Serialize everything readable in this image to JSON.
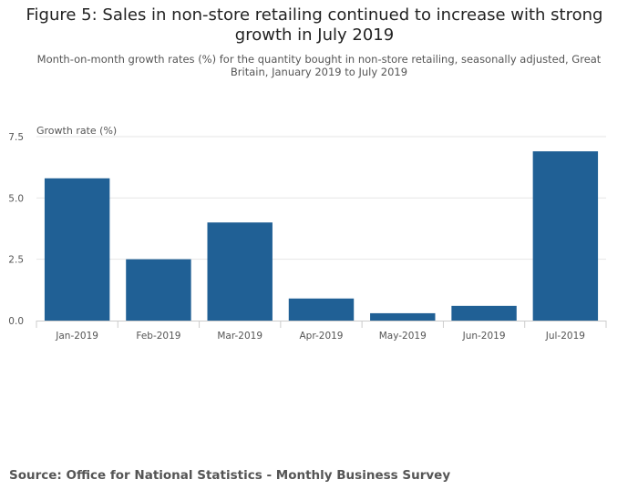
{
  "title": "Figure 5: Sales in non-store retailing continued to increase with strong growth in July 2019",
  "subtitle": "Month-on-month growth rates (%) for the quantity bought in non-store retailing, seasonally adjusted, Great Britain, January 2019 to July 2019",
  "source": "Source: Office for National Statistics - Monthly Business Survey",
  "chart_data": {
    "type": "bar",
    "categories": [
      "Jan-2019",
      "Feb-2019",
      "Mar-2019",
      "Apr-2019",
      "May-2019",
      "Jun-2019",
      "Jul-2019"
    ],
    "values": [
      5.8,
      2.5,
      4.0,
      0.9,
      0.3,
      0.6,
      6.9
    ],
    "ylabel": "Growth rate (%)",
    "ylim": [
      0,
      7.5
    ],
    "yticks": [
      "0.0",
      "2.5",
      "5.0",
      "7.5"
    ],
    "ytick_values": [
      0,
      2.5,
      5,
      7.5
    ],
    "bar_color": "#206095",
    "grid": true
  }
}
